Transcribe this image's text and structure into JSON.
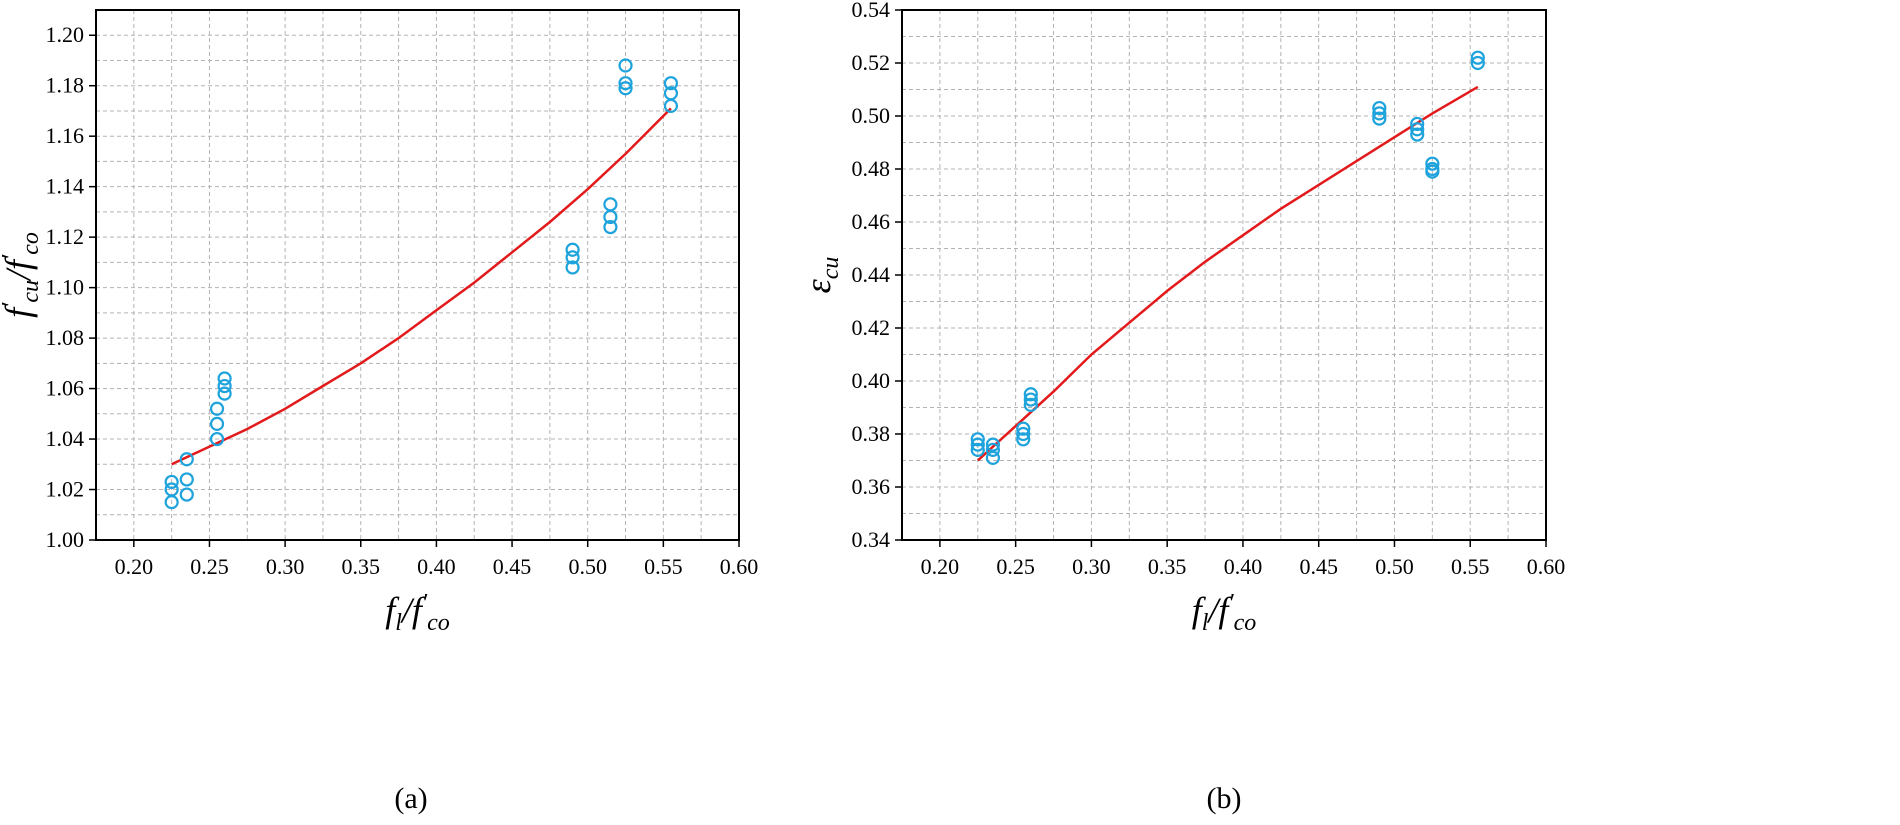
{
  "colors": {
    "points": "#1ea3dc",
    "fit": "#e31a1c",
    "grid": "#b3b3b3",
    "axis": "#000000"
  },
  "chart_data": [
    {
      "type": "scatter",
      "caption": "(a)",
      "xlabel": {
        "main": "f",
        "sub": "l",
        "sep": "/f",
        "prime": "′",
        "sub2": "co"
      },
      "ylabel": {
        "main": "f",
        "prime": "′",
        "sub": "cu",
        "sep": "/f",
        "prime2": "′",
        "sub2": "co"
      },
      "xlim": [
        0.175,
        0.6
      ],
      "ylim": [
        1.0,
        1.21
      ],
      "xticks": [
        "0.20",
        "0.25",
        "0.30",
        "0.35",
        "0.40",
        "0.45",
        "0.50",
        "0.55",
        "0.60"
      ],
      "yticks": [
        "1.00",
        "1.02",
        "1.04",
        "1.06",
        "1.08",
        "1.10",
        "1.12",
        "1.14",
        "1.16",
        "1.18",
        "1.20"
      ],
      "grid": true,
      "points": [
        [
          0.225,
          1.015
        ],
        [
          0.225,
          1.02
        ],
        [
          0.225,
          1.023
        ],
        [
          0.235,
          1.018
        ],
        [
          0.235,
          1.024
        ],
        [
          0.235,
          1.032
        ],
        [
          0.255,
          1.04
        ],
        [
          0.255,
          1.046
        ],
        [
          0.255,
          1.052
        ],
        [
          0.26,
          1.058
        ],
        [
          0.26,
          1.061
        ],
        [
          0.26,
          1.064
        ],
        [
          0.49,
          1.108
        ],
        [
          0.49,
          1.112
        ],
        [
          0.49,
          1.115
        ],
        [
          0.515,
          1.124
        ],
        [
          0.515,
          1.128
        ],
        [
          0.515,
          1.133
        ],
        [
          0.525,
          1.179
        ],
        [
          0.525,
          1.181
        ],
        [
          0.525,
          1.188
        ],
        [
          0.555,
          1.172
        ],
        [
          0.555,
          1.177
        ],
        [
          0.555,
          1.181
        ]
      ],
      "fit": [
        [
          0.225,
          1.03
        ],
        [
          0.25,
          1.037
        ],
        [
          0.275,
          1.044
        ],
        [
          0.3,
          1.052
        ],
        [
          0.325,
          1.061
        ],
        [
          0.35,
          1.07
        ],
        [
          0.375,
          1.08
        ],
        [
          0.4,
          1.091
        ],
        [
          0.425,
          1.102
        ],
        [
          0.45,
          1.114
        ],
        [
          0.475,
          1.126
        ],
        [
          0.5,
          1.139
        ],
        [
          0.525,
          1.153
        ],
        [
          0.555,
          1.171
        ]
      ]
    },
    {
      "type": "scatter",
      "caption": "(b)",
      "xlabel": {
        "main": "f",
        "sub": "l",
        "sep": "/f",
        "prime": "′",
        "sub2": "co"
      },
      "ylabel": {
        "main": "ε",
        "sub": "cu"
      },
      "xlim": [
        0.175,
        0.6
      ],
      "ylim": [
        0.34,
        0.54
      ],
      "xticks": [
        "0.20",
        "0.25",
        "0.30",
        "0.35",
        "0.40",
        "0.45",
        "0.50",
        "0.55",
        "0.60"
      ],
      "yticks": [
        "0.34",
        "0.36",
        "0.38",
        "0.40",
        "0.42",
        "0.44",
        "0.46",
        "0.48",
        "0.50",
        "0.52",
        "0.54"
      ],
      "grid": true,
      "points": [
        [
          0.225,
          0.374
        ],
        [
          0.225,
          0.376
        ],
        [
          0.225,
          0.378
        ],
        [
          0.235,
          0.371
        ],
        [
          0.235,
          0.374
        ],
        [
          0.235,
          0.376
        ],
        [
          0.255,
          0.378
        ],
        [
          0.255,
          0.38
        ],
        [
          0.255,
          0.382
        ],
        [
          0.26,
          0.391
        ],
        [
          0.26,
          0.393
        ],
        [
          0.26,
          0.395
        ],
        [
          0.49,
          0.499
        ],
        [
          0.49,
          0.501
        ],
        [
          0.49,
          0.503
        ],
        [
          0.515,
          0.493
        ],
        [
          0.515,
          0.495
        ],
        [
          0.515,
          0.497
        ],
        [
          0.525,
          0.479
        ],
        [
          0.525,
          0.48
        ],
        [
          0.525,
          0.482
        ],
        [
          0.555,
          0.52
        ],
        [
          0.555,
          0.522
        ]
      ],
      "fit": [
        [
          0.225,
          0.37
        ],
        [
          0.25,
          0.383
        ],
        [
          0.275,
          0.396
        ],
        [
          0.3,
          0.41
        ],
        [
          0.325,
          0.422
        ],
        [
          0.35,
          0.434
        ],
        [
          0.375,
          0.445
        ],
        [
          0.4,
          0.455
        ],
        [
          0.425,
          0.465
        ],
        [
          0.45,
          0.474
        ],
        [
          0.475,
          0.483
        ],
        [
          0.5,
          0.492
        ],
        [
          0.525,
          0.501
        ],
        [
          0.555,
          0.511
        ]
      ]
    }
  ]
}
